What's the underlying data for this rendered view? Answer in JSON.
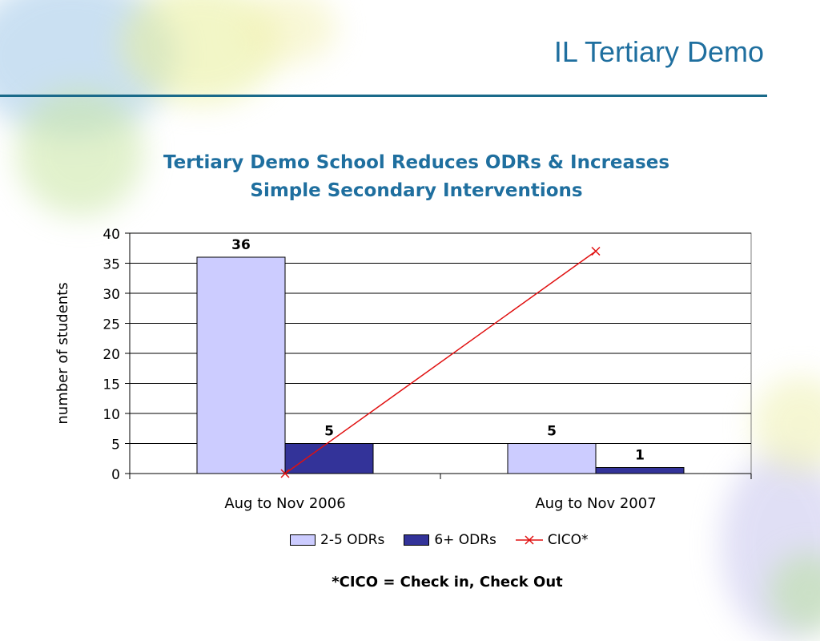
{
  "slide": {
    "title": "IL Tertiary Demo",
    "footnote": "*CICO = Check in, Check Out"
  },
  "chart_data": {
    "type": "bar",
    "title_lines": [
      "Tertiary Demo School Reduces ODRs & Increases",
      "Simple Secondary Interventions"
    ],
    "ylabel": "number of students",
    "xlabel": "",
    "ylim": [
      0,
      40
    ],
    "y_ticks": [
      "0",
      "5",
      "10",
      "15",
      "20",
      "25",
      "30",
      "35",
      "40"
    ],
    "grid": true,
    "categories": [
      "Aug to Nov 2006",
      "Aug to Nov 2007"
    ],
    "series": [
      {
        "name": "2-5 ODRs",
        "type": "bar",
        "values": [
          36,
          5
        ],
        "color": "#ccccff",
        "labels": [
          "36",
          "5"
        ]
      },
      {
        "name": "6+ ODRs",
        "type": "bar",
        "values": [
          5,
          1
        ],
        "color": "#333399",
        "labels": [
          "5",
          "1"
        ]
      },
      {
        "name": "CICO*",
        "type": "line",
        "values": [
          0,
          37
        ],
        "color": "#e01010",
        "marker": "x"
      }
    ],
    "legend_position": "bottom"
  }
}
